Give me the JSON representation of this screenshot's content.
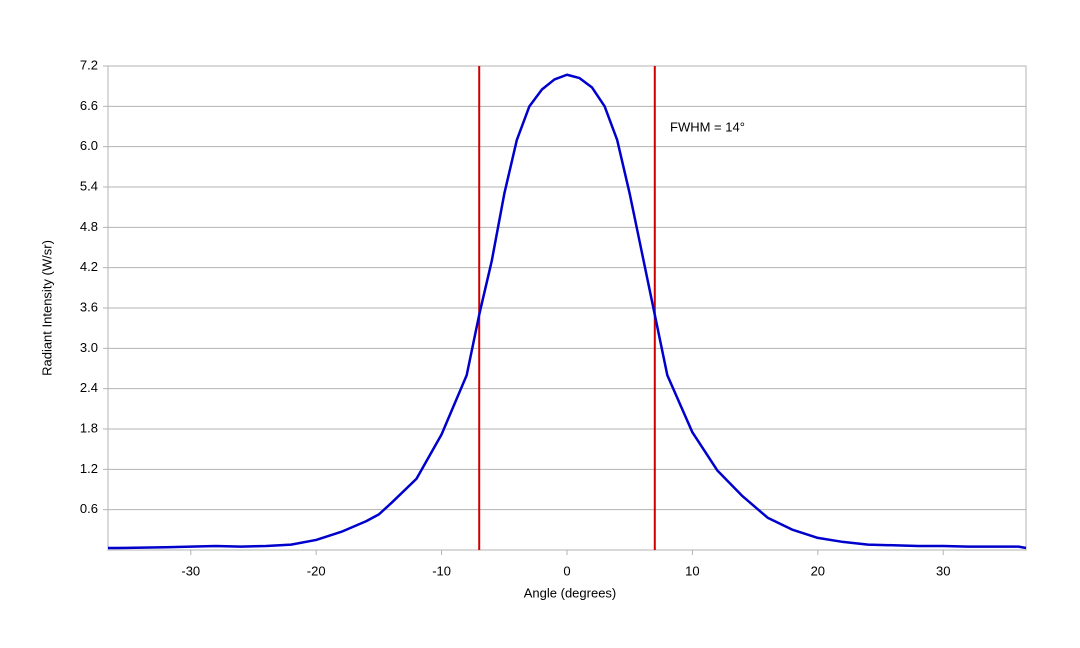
{
  "chart_data": {
    "type": "line",
    "x_label": "Angle (degrees)",
    "y_label": "Radiant Intensity (W/sr)",
    "x": [
      -36.6,
      -36,
      -32,
      -30,
      -28,
      -26,
      -24,
      -22,
      -20,
      -18,
      -16,
      -15,
      -14,
      -12,
      -10,
      -8,
      -7,
      -6,
      -5,
      -4,
      -3,
      -2,
      -1,
      0,
      1,
      2,
      3,
      4,
      5,
      6,
      7,
      8,
      10,
      12,
      14,
      16,
      18,
      20,
      22,
      24,
      26,
      28,
      30,
      32,
      34,
      36,
      36.6
    ],
    "series": [
      {
        "name": "Radiant Intensity",
        "color": "#0000cc",
        "values": [
          0.03,
          0.03,
          0.04,
          0.05,
          0.06,
          0.05,
          0.06,
          0.08,
          0.15,
          0.27,
          0.43,
          0.53,
          0.7,
          1.06,
          1.72,
          2.6,
          3.5,
          4.3,
          5.3,
          6.1,
          6.6,
          6.85,
          7.0,
          7.07,
          7.02,
          6.88,
          6.6,
          6.1,
          5.3,
          4.4,
          3.5,
          2.6,
          1.75,
          1.18,
          0.8,
          0.48,
          0.3,
          0.18,
          0.12,
          0.08,
          0.07,
          0.06,
          0.06,
          0.05,
          0.05,
          0.05,
          0.03
        ]
      }
    ],
    "vlines": [
      -7,
      7
    ],
    "vline_color": "#cc0000",
    "annotation": "FWHM = 14°",
    "xlim": [
      -36.6,
      36.6
    ],
    "xticks": [
      -30,
      -20,
      -10,
      0,
      10,
      20,
      30
    ],
    "ylim": [
      0,
      7.2
    ],
    "yticks": [
      0.6,
      1.2,
      1.8,
      2.4,
      {
        "value": 3,
        "label": "3.0"
      },
      3.6,
      4.2,
      4.8,
      5.4,
      {
        "value": 6,
        "label": "6.0"
      },
      6.6,
      7.2
    ],
    "grid": true
  }
}
